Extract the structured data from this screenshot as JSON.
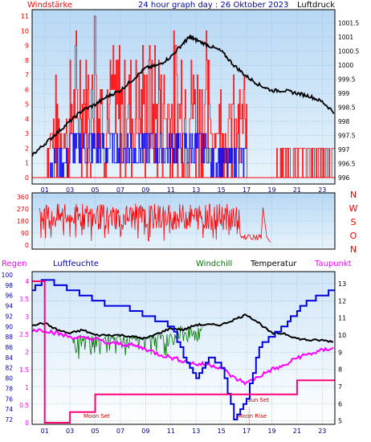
{
  "chart_data": [
    {
      "type": "line",
      "panel": "wind-pressure",
      "title": "24 hour graph day : 26 Oktober 2023",
      "left_label": "Windstärke",
      "right_label": "Luftdruck",
      "x_ticks": [
        "01",
        "03",
        "05",
        "07",
        "09",
        "11",
        "13",
        "15",
        "17",
        "19",
        "21",
        "23"
      ],
      "x_range_hours": [
        0,
        24
      ],
      "y_left_ticks": [
        0,
        1,
        2,
        3,
        4,
        5,
        6,
        7,
        8,
        9,
        10,
        11
      ],
      "y_left_range": [
        0,
        11
      ],
      "y_right_ticks": [
        996,
        996.5,
        997,
        997.5,
        998,
        998.5,
        999,
        999.5,
        1000,
        1000.5,
        1001,
        1001.5
      ],
      "y_right_range": [
        996,
        1001.75
      ],
      "series": [
        {
          "name": "Luftdruck",
          "color": "#000000",
          "x": [
            0,
            1,
            2,
            3,
            4,
            5,
            6,
            7,
            8,
            9,
            10,
            11,
            12,
            12.5,
            13,
            14,
            15,
            16,
            17,
            18,
            19,
            20,
            21,
            22,
            23,
            24
          ],
          "values": [
            996.8,
            997.2,
            997.6,
            998.0,
            998.4,
            998.6,
            998.9,
            999.1,
            999.5,
            999.9,
            1000.0,
            1000.3,
            1000.8,
            1001.0,
            1000.9,
            1000.7,
            1000.5,
            1000.0,
            999.6,
            999.3,
            999.1,
            999.1,
            999.0,
            998.9,
            998.7,
            998.3
          ]
        }
      ],
      "wind_gust_color": "#ff0000",
      "wind_avg_color": "#0000ff",
      "wind_gust_levels": [
        0,
        1,
        2,
        3,
        4,
        5,
        6,
        7,
        8,
        9,
        10,
        11
      ],
      "wind_avg_levels": [
        0,
        1,
        2,
        3,
        4
      ]
    },
    {
      "type": "line",
      "panel": "wind-direction",
      "y_left_ticks": [
        0,
        90,
        180,
        270,
        360
      ],
      "y_left_range": [
        0,
        360
      ],
      "compass_labels": [
        "N",
        "W",
        "S",
        "O",
        "N"
      ],
      "series": [
        {
          "name": "Windrichtung",
          "color": "#ff0000",
          "x_range": [
            0,
            18.5
          ],
          "typical_band": [
            90,
            270
          ]
        }
      ]
    },
    {
      "type": "line",
      "panel": "temperature-humidity",
      "legend": [
        "Regen",
        "Luftfeuchte",
        "Windchill",
        "Temperatur",
        "Taupunkt"
      ],
      "legend_colors": [
        "#ff00ff",
        "#0000aa",
        "#007700",
        "#000000",
        "#ff00ff"
      ],
      "y_left_rain_ticks": [
        0,
        0.5,
        1,
        1.5,
        2,
        2.5,
        3,
        3.5,
        4
      ],
      "y_left_humidity_ticks": [
        72,
        74,
        76,
        78,
        80,
        82,
        84,
        86,
        88,
        90,
        92,
        94,
        96,
        98,
        100
      ],
      "y_right_ticks": [
        5,
        6,
        7,
        8,
        9,
        10,
        11,
        12,
        13
      ],
      "y_right_range": [
        4.8,
        13.7
      ],
      "annotations": [
        "Moon Set",
        "Sun Set",
        "Moon Rise"
      ],
      "series": [
        {
          "name": "Temperatur",
          "color": "#000000",
          "x": [
            0,
            1,
            2,
            3,
            4,
            5,
            6,
            7,
            8,
            9,
            10,
            11,
            12,
            13,
            14,
            15,
            16,
            17,
            18,
            19,
            20,
            21,
            22,
            23,
            24
          ],
          "values": [
            10.6,
            10.7,
            10.3,
            10.1,
            10.3,
            10.0,
            10.0,
            10.0,
            9.9,
            9.8,
            10.1,
            10.4,
            10.3,
            10.6,
            10.6,
            10.6,
            10.9,
            11.2,
            10.7,
            10.1,
            10.1,
            9.8,
            9.7,
            9.7,
            9.6
          ]
        },
        {
          "name": "Taupunkt",
          "color": "#ff00ff",
          "x": [
            0,
            1,
            2,
            3,
            4,
            5,
            6,
            7,
            8,
            9,
            10,
            11,
            12,
            13,
            14,
            15,
            16,
            17,
            18,
            19,
            20,
            21,
            22,
            23,
            24
          ],
          "values": [
            10.3,
            10.3,
            10.1,
            9.9,
            9.8,
            9.8,
            9.5,
            9.5,
            9.4,
            9.2,
            8.9,
            8.7,
            8.5,
            8.3,
            8.3,
            8.1,
            7.5,
            7.2,
            7.6,
            8.0,
            8.2,
            8.7,
            8.9,
            9.1,
            9.3
          ]
        },
        {
          "name": "Luftfeuchte",
          "color": "#0000dd",
          "x": [
            0,
            1,
            2,
            3,
            4,
            5,
            6,
            7,
            8,
            9,
            10,
            11,
            12,
            13,
            14,
            15,
            16,
            17,
            18,
            19,
            20,
            21,
            22,
            23,
            24
          ],
          "values": [
            97,
            99,
            98,
            97,
            96,
            95,
            94,
            94,
            93,
            92,
            91,
            90,
            84,
            80,
            84,
            82,
            72,
            76,
            86,
            88,
            90,
            93,
            95,
            96,
            97
          ]
        },
        {
          "name": "Regen",
          "color": "#ff0077",
          "x": [
            0,
            1,
            2,
            3,
            4,
            5,
            6,
            7,
            8,
            9,
            10,
            11,
            12,
            13,
            14,
            15,
            16,
            17,
            18,
            19,
            20,
            21,
            22,
            23,
            24
          ],
          "values": [
            4.0,
            0,
            0,
            0.3,
            0.3,
            0.8,
            0.8,
            0.8,
            0.8,
            0.8,
            0.8,
            0.8,
            0.8,
            0.8,
            0.8,
            0.8,
            0.8,
            0.8,
            0.8,
            0.8,
            0.8,
            1.2,
            1.2,
            1.2,
            1.5
          ]
        }
      ]
    }
  ]
}
